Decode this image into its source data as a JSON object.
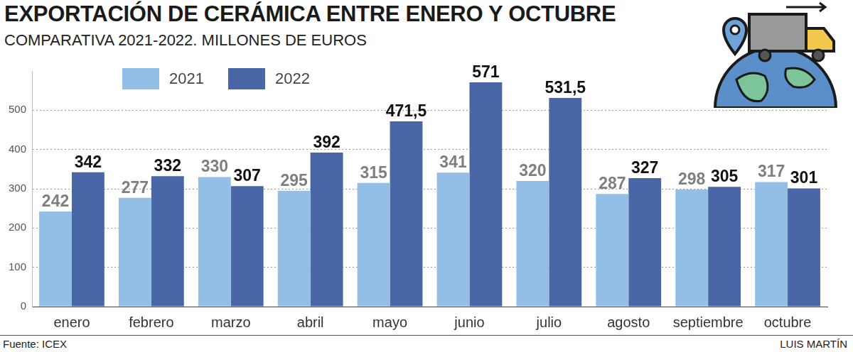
{
  "chart_data": {
    "type": "bar",
    "title": "EXPORTACIÓN DE CERÁMICA ENTRE ENERO Y OCTUBRE",
    "subtitle": "COMPARATIVA 2021-2022. MILLONES DE EUROS",
    "source": "Fuente: ICEX",
    "credit": "LUIS MARTÍN",
    "categories": [
      "enero",
      "febrero",
      "marzo",
      "abril",
      "mayo",
      "junio",
      "julio",
      "agosto",
      "septiembre",
      "octubre"
    ],
    "series": [
      {
        "name": "2021",
        "color": "#93bfe7",
        "values": [
          242,
          277,
          330,
          295,
          315,
          341,
          320,
          287,
          298,
          317
        ]
      },
      {
        "name": "2022",
        "color": "#4967a6",
        "values": [
          342,
          332,
          307,
          392,
          471.5,
          571,
          531.5,
          327,
          305,
          301
        ],
        "value_labels": [
          "342",
          "332",
          "307",
          "392",
          "471,5",
          "571",
          "531,5",
          "327",
          "305",
          "301"
        ]
      }
    ],
    "ylim": [
      0,
      600
    ],
    "yticks": [
      0,
      100,
      200,
      300,
      400,
      500
    ],
    "grid": true,
    "legend": "top-left",
    "data_labels": true
  }
}
